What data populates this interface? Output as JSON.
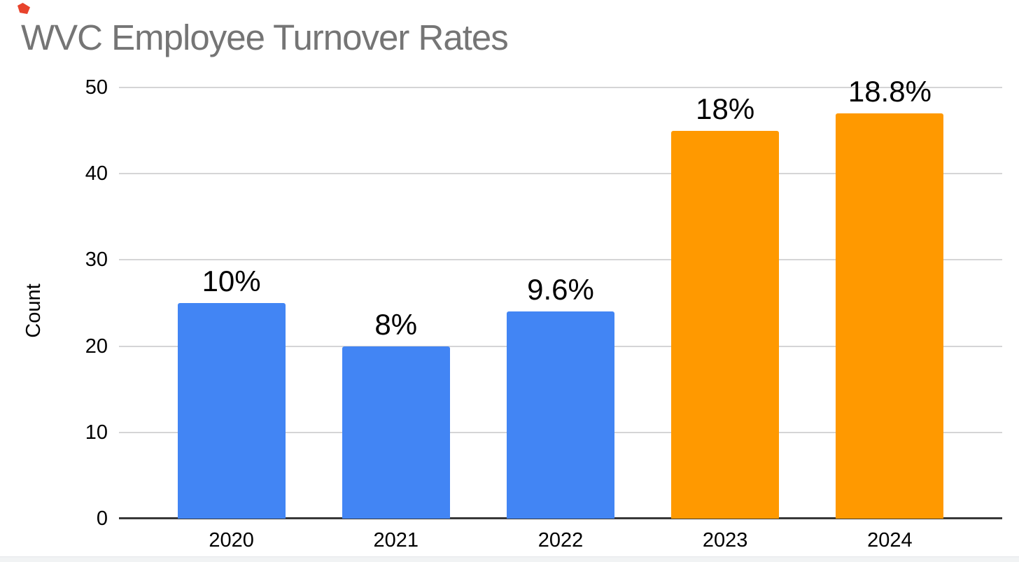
{
  "page": {
    "background": "#ffffff",
    "bottom_strip_color": "#f1f3f4",
    "annotation_mark_color": "#e8432c"
  },
  "chart_data": {
    "type": "bar",
    "title": "WVC Employee Turnover Rates",
    "title_color": "#757575",
    "xlabel": "",
    "ylabel": "Count",
    "categories": [
      "2020",
      "2021",
      "2022",
      "2023",
      "2024"
    ],
    "values": [
      25,
      20,
      24,
      45,
      47
    ],
    "bar_labels": [
      "10%",
      "8%",
      "9.6%",
      "18%",
      "18.8%"
    ],
    "bar_colors": [
      "#4285f4",
      "#4285f4",
      "#4285f4",
      "#ff9900",
      "#ff9900"
    ],
    "ylim": [
      0,
      50
    ],
    "yticks": [
      0,
      10,
      20,
      30,
      40,
      50
    ],
    "grid": true,
    "legend": "none",
    "gridline_color": "#d5d5d6",
    "axis_line_color": "#383838",
    "label_color": "#000000"
  }
}
